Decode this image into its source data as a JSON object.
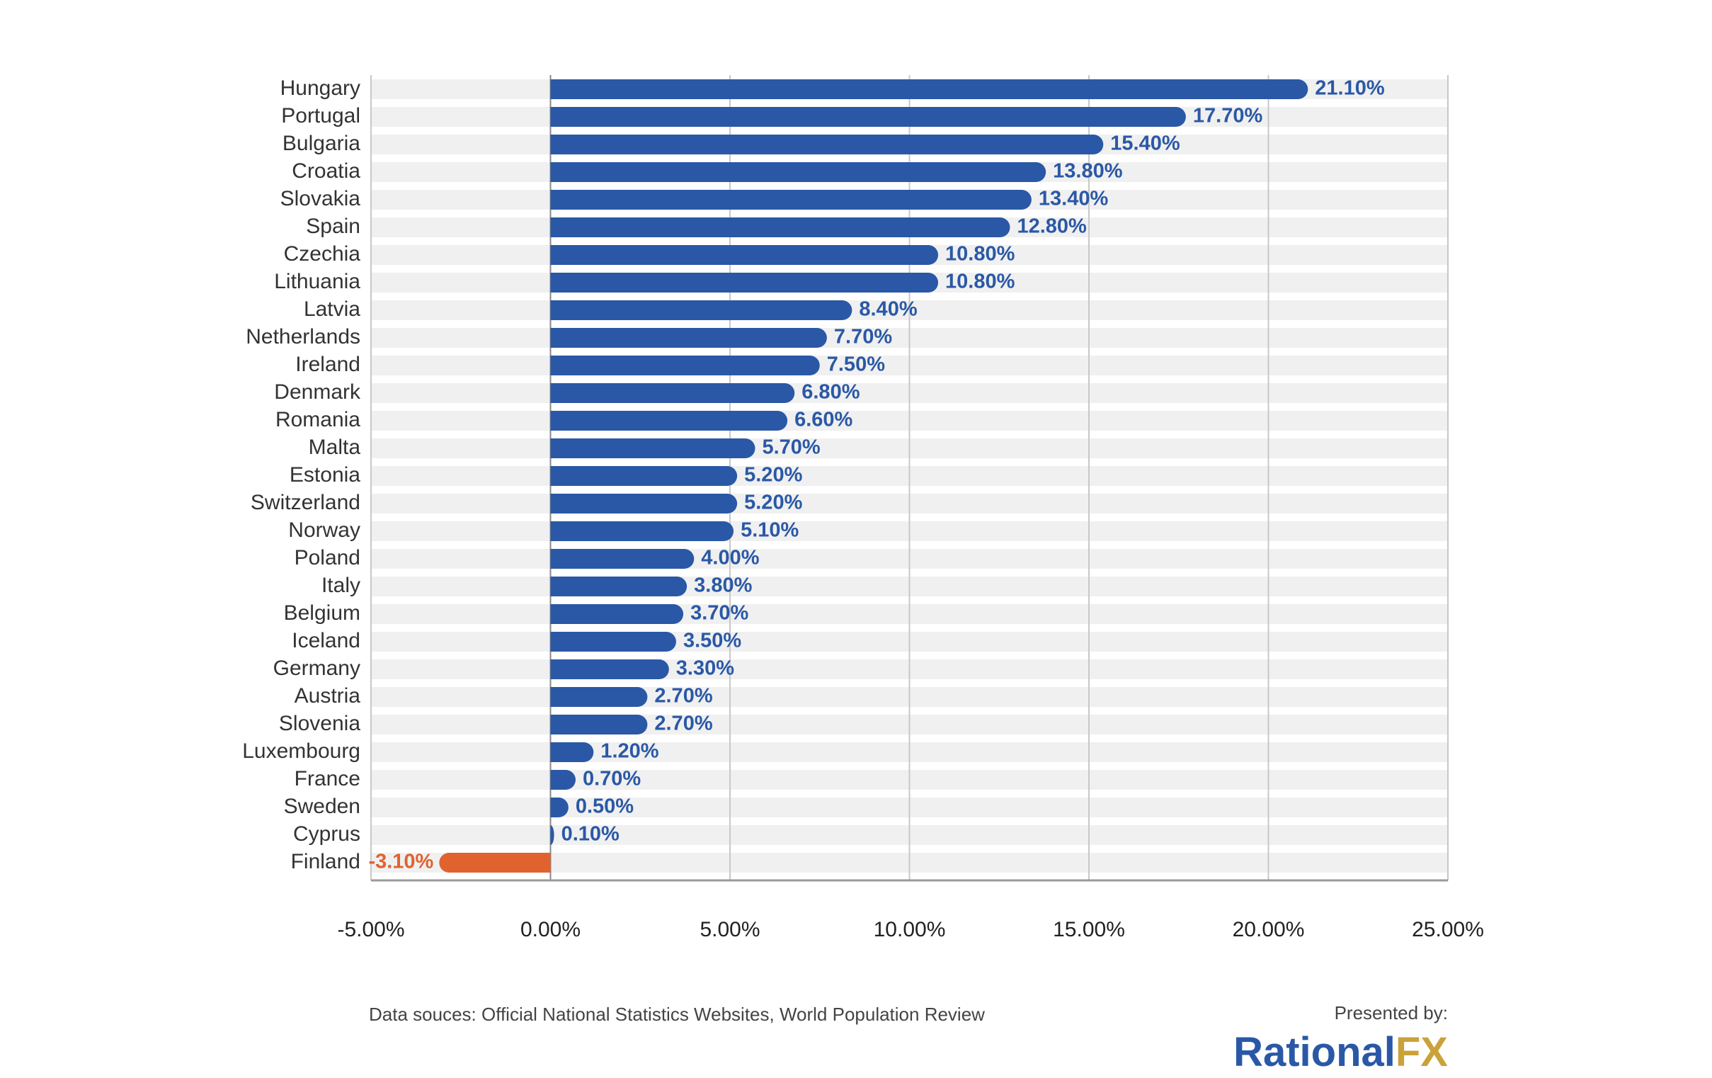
{
  "chart_data": {
    "type": "hbar",
    "categories": [
      "Hungary",
      "Portugal",
      "Bulgaria",
      "Croatia",
      "Slovakia",
      "Spain",
      "Czechia",
      "Lithuania",
      "Latvia",
      "Netherlands",
      "Ireland",
      "Denmark",
      "Romania",
      "Malta",
      "Estonia",
      "Switzerland",
      "Norway",
      "Poland",
      "Italy",
      "Belgium",
      "Iceland",
      "Germany",
      "Austria",
      "Slovenia",
      "Luxembourg",
      "France",
      "Sweden",
      "Cyprus",
      "Finland"
    ],
    "values": [
      21.1,
      17.7,
      15.4,
      13.8,
      13.4,
      12.8,
      10.8,
      10.8,
      8.4,
      7.7,
      7.5,
      6.8,
      6.6,
      5.7,
      5.2,
      5.2,
      5.1,
      4.0,
      3.8,
      3.7,
      3.5,
      3.3,
      2.7,
      2.7,
      1.2,
      0.7,
      0.5,
      0.1,
      -3.1
    ],
    "value_labels": [
      "21.10%",
      "17.70%",
      "15.40%",
      "13.80%",
      "13.40%",
      "12.80%",
      "10.80%",
      "10.80%",
      "8.40%",
      "7.70%",
      "7.50%",
      "6.80%",
      "6.60%",
      "5.70%",
      "5.20%",
      "5.20%",
      "5.10%",
      "4.00%",
      "3.80%",
      "3.70%",
      "3.50%",
      "3.30%",
      "2.70%",
      "2.70%",
      "1.20%",
      "0.70%",
      "0.50%",
      "0.10%",
      "-3.10%"
    ],
    "color": "#2a58a6",
    "negative_color": "#e0622f",
    "xlim": [
      -5,
      25
    ],
    "xticks": [
      {
        "value": -5,
        "label": "-5.00%"
      },
      {
        "value": 0,
        "label": "0.00%"
      },
      {
        "value": 5,
        "label": "5.00%"
      },
      {
        "value": 10,
        "label": "10.00%"
      },
      {
        "value": 15,
        "label": "15.00%"
      },
      {
        "value": 20,
        "label": "20.00%"
      },
      {
        "value": 25,
        "label": "25.00%"
      }
    ],
    "grid": true,
    "source": "Data souces: Official National Statistics Websites, World Population Review",
    "presented_by": "Presented by:",
    "logo": [
      "Rational",
      "FX"
    ]
  }
}
